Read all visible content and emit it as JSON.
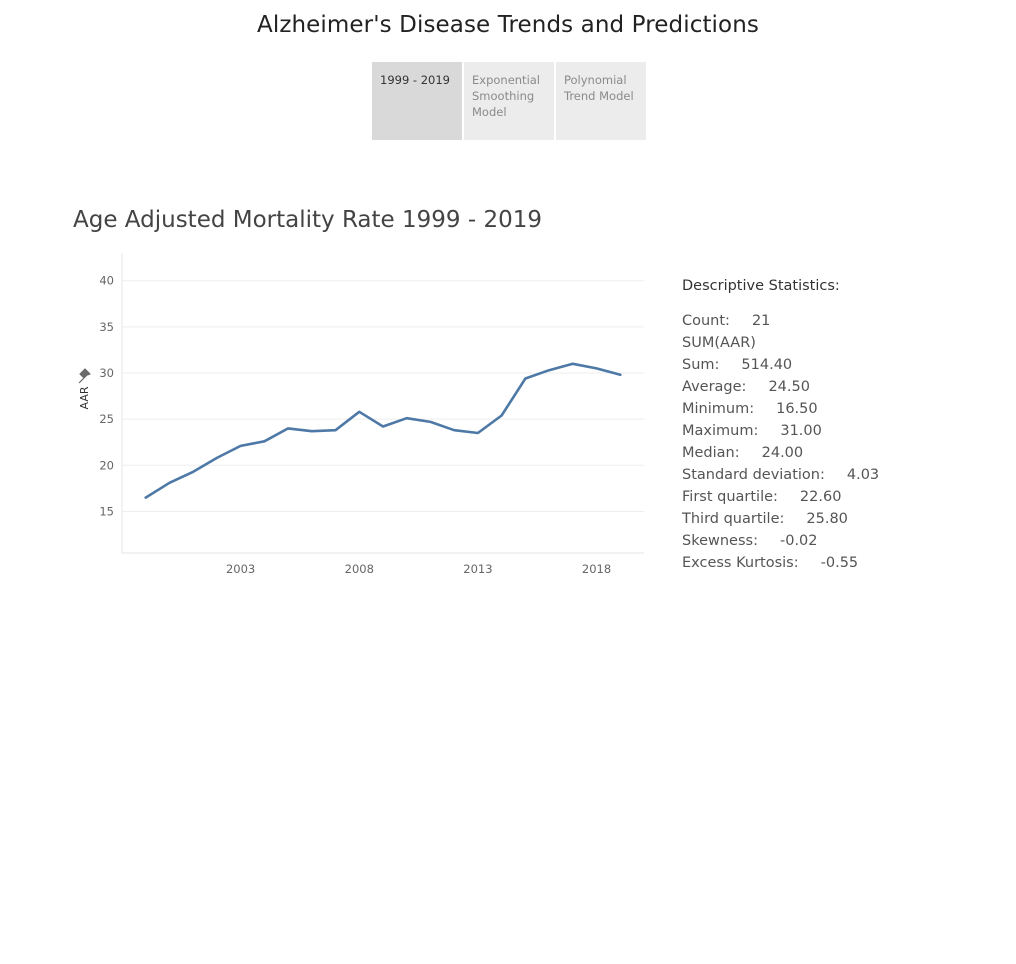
{
  "header": {
    "title": "Alzheimer's Disease Trends and Predictions"
  },
  "tabs": [
    {
      "lines": [
        "1999 - 2019"
      ],
      "active": true
    },
    {
      "lines": [
        "Exponential",
        "Smoothing",
        "Model"
      ],
      "active": false
    },
    {
      "lines": [
        "Polynomial",
        "Trend Model"
      ],
      "active": false
    }
  ],
  "chart_data": {
    "type": "line",
    "title": "Age Adjusted Mortality Rate 1999 - 2019",
    "ylabel": "AAR",
    "xlabel": "",
    "x": [
      1999,
      2000,
      2001,
      2002,
      2003,
      2004,
      2005,
      2006,
      2007,
      2008,
      2009,
      2010,
      2011,
      2012,
      2013,
      2014,
      2015,
      2016,
      2017,
      2018,
      2019
    ],
    "series": [
      {
        "values": [
          16.5,
          18.1,
          19.3,
          20.8,
          22.1,
          22.6,
          24.0,
          23.7,
          23.8,
          25.8,
          24.2,
          25.1,
          24.7,
          23.8,
          23.5,
          25.4,
          29.4,
          30.3,
          31.0,
          30.5,
          29.8
        ],
        "color": "#4e79a7"
      }
    ],
    "xticks": [
      2003,
      2008,
      2013,
      2018
    ],
    "yticks": [
      15,
      20,
      25,
      30,
      35,
      40
    ],
    "xlim": [
      1998,
      2020
    ],
    "ylim": [
      10.5,
      43
    ],
    "grid": true
  },
  "stats": {
    "heading": "Descriptive Statistics:",
    "rows": [
      {
        "label": "Count:",
        "value": "21"
      },
      {
        "label": "SUM(AAR)",
        "value": ""
      },
      {
        "label": "Sum:",
        "value": "514.40"
      },
      {
        "label": "Average:",
        "value": "24.50"
      },
      {
        "label": "Minimum:",
        "value": "16.50"
      },
      {
        "label": "Maximum:",
        "value": "31.00"
      },
      {
        "label": "Median:",
        "value": "24.00"
      },
      {
        "label": "Standard deviation:",
        "value": "4.03"
      },
      {
        "label": "First quartile:",
        "value": "22.60"
      },
      {
        "label": "Third quartile:",
        "value": "25.80"
      },
      {
        "label": "Skewness:",
        "value": "-0.02"
      },
      {
        "label": "Excess Kurtosis:",
        "value": "-0.55"
      }
    ]
  },
  "colors": {
    "line": "#4e79a7",
    "grid": "#eeeeee",
    "axis_text": "#666666",
    "tab_active": "#d9d9d9",
    "tab_inactive": "#ececec"
  },
  "icons": {
    "pin": "pin-icon"
  }
}
